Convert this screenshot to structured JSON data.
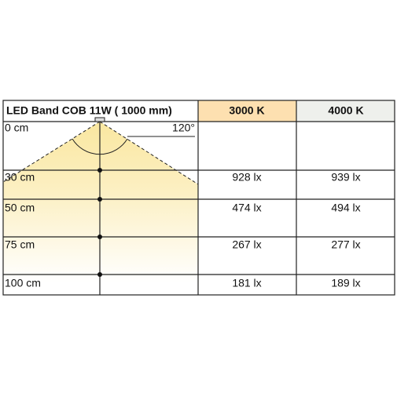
{
  "header": {
    "title": "LED Band COB 11W ( 1000 mm)",
    "columns": [
      "3000 K",
      "4000 K"
    ]
  },
  "beam_angle": "120°",
  "rows": [
    {
      "distance": "0 cm"
    },
    {
      "distance": "30 cm",
      "values": [
        "928 lx",
        "939 lx"
      ]
    },
    {
      "distance": "50 cm",
      "values": [
        "474 lx",
        "494 lx"
      ]
    },
    {
      "distance": "75 cm",
      "values": [
        "267 lx",
        "277 lx"
      ]
    },
    {
      "distance": "100 cm",
      "values": [
        "181 lx",
        "189 lx"
      ]
    }
  ]
}
